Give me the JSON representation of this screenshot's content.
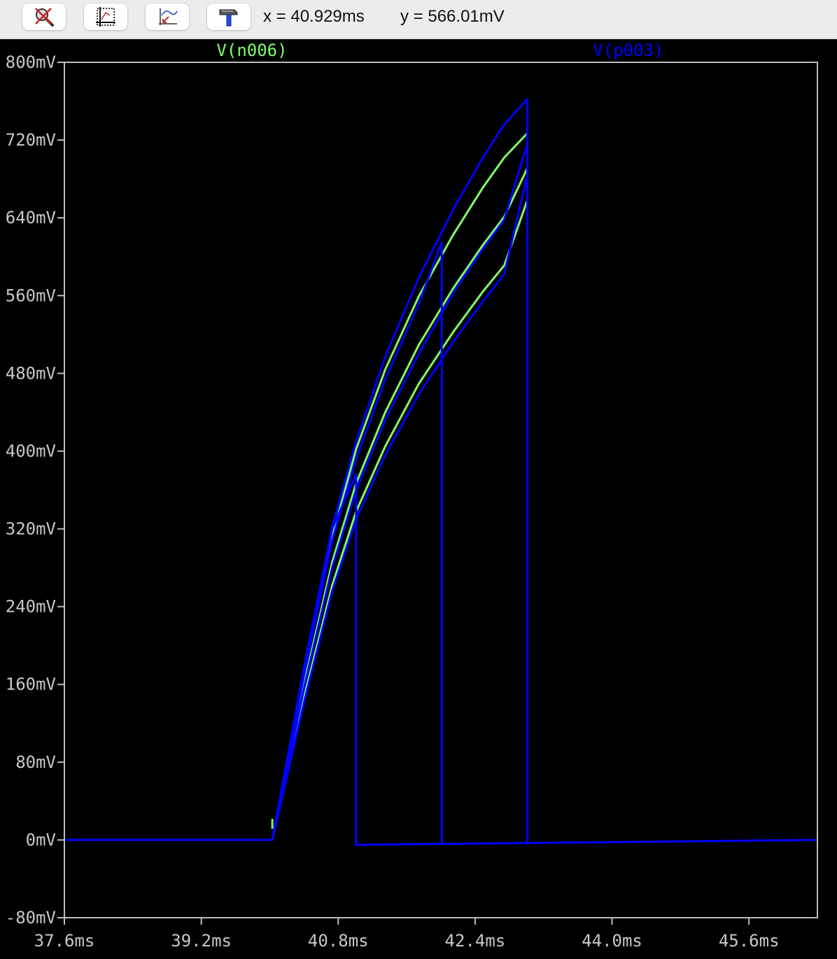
{
  "toolbar": {
    "buttons": [
      {
        "name": "zoom-cancel-button",
        "icon": "magnifier-cross-icon"
      },
      {
        "name": "autorange-button",
        "icon": "autorange-frame-icon"
      },
      {
        "name": "zoom-back-button",
        "icon": "zoom-back-arrow-icon"
      },
      {
        "name": "tools-button",
        "icon": "hammer-icon"
      }
    ],
    "cursor_x": "x = 40.929ms",
    "cursor_y": "y = 566.01mV"
  },
  "colors": {
    "green_trace": "#7fff6a",
    "blue_trace": "#0000ff",
    "axis": "#bdbdbd",
    "plot_bg": "#000000",
    "tick_label": "#c8c8c8"
  },
  "chart_data": {
    "type": "line",
    "legend": [
      {
        "name": "V(n006)",
        "color": "#7fff6a"
      },
      {
        "name": "V(p003)",
        "color": "#0000ff"
      }
    ],
    "xlabel": "",
    "ylabel": "",
    "x_unit": "ms",
    "y_unit": "mV",
    "xlim": [
      37.6,
      46.4
    ],
    "ylim": [
      -80,
      800
    ],
    "xticks": [
      "37.6ms",
      "39.2ms",
      "40.8ms",
      "42.4ms",
      "44.0ms",
      "45.6ms"
    ],
    "yticks": [
      "800mV",
      "720mV",
      "640mV",
      "560mV",
      "480mV",
      "400mV",
      "320mV",
      "240mV",
      "160mV",
      "80mV",
      "0mV",
      "-80mV"
    ],
    "grid": false,
    "series": [
      {
        "name": "V(n006)",
        "color": "#7fff6a",
        "x": [
          40.03,
          40.41,
          40.73,
          41.01,
          41.35,
          41.74,
          42.14,
          42.49,
          42.74,
          43.01
        ],
        "y": [
          0,
          177,
          312,
          402,
          484,
          559,
          622,
          671,
          702,
          727
        ]
      },
      {
        "name": "V(n006)",
        "color": "#7fff6a",
        "x": [
          40.03,
          40.41,
          40.73,
          41.01,
          41.35,
          41.74,
          42.14,
          42.49,
          42.74,
          43.01
        ],
        "y": [
          0,
          164,
          286,
          367,
          440,
          509,
          567,
          612,
          641,
          691
        ]
      },
      {
        "name": "V(n006)",
        "color": "#7fff6a",
        "x": [
          40.03,
          40.41,
          40.73,
          41.01,
          41.35,
          41.74,
          42.14,
          42.49,
          42.74,
          43.01
        ],
        "y": [
          0,
          150,
          262,
          338,
          405,
          469,
          522,
          564,
          591,
          658
        ]
      },
      {
        "name": "V(p003)",
        "color": "#0000ff",
        "x": [
          37.6,
          40.03,
          40.41,
          40.73,
          41.01,
          41.01,
          41.01,
          46.4
        ],
        "y": [
          0,
          0,
          180,
          320,
          376,
          376,
          -5,
          0
        ]
      },
      {
        "name": "V(p003)",
        "color": "#0000ff",
        "x": [
          40.03,
          40.41,
          40.73,
          41.01,
          41.35,
          41.74,
          42.01,
          42.01,
          42.01
        ],
        "y": [
          0,
          174,
          308,
          392,
          474,
          551,
          615,
          615,
          -5
        ]
      },
      {
        "name": "V(p003)",
        "color": "#0000ff",
        "x": [
          40.03,
          40.41,
          40.73,
          41.01,
          41.35,
          41.74,
          42.14,
          42.49,
          42.74,
          43.01,
          43.01,
          43.01
        ],
        "y": [
          0,
          182,
          322,
          410,
          497,
          578,
          648,
          702,
          736,
          762,
          762,
          -5
        ]
      },
      {
        "name": "V(p003)",
        "color": "#0000ff",
        "x": [
          40.03,
          40.41,
          40.73,
          41.01,
          41.35,
          41.74,
          42.14,
          42.49,
          42.74,
          43.01
        ],
        "y": [
          0,
          160,
          280,
          360,
          432,
          500,
          562,
          608,
          638,
          716
        ]
      },
      {
        "name": "V(p003)",
        "color": "#0000ff",
        "x": [
          40.03,
          40.41,
          40.73,
          41.01,
          41.35,
          41.74,
          42.14,
          42.49,
          42.74,
          43.01
        ],
        "y": [
          0,
          145,
          256,
          330,
          396,
          458,
          512,
          554,
          582,
          684
        ]
      }
    ]
  }
}
